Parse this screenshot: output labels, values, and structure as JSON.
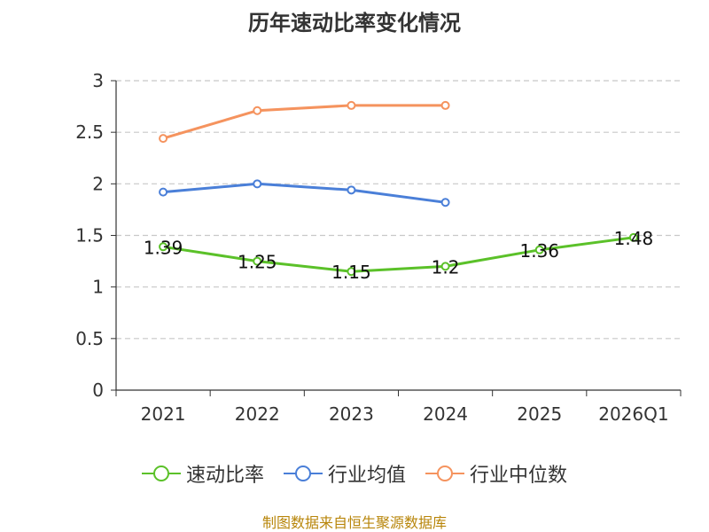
{
  "chart_data": {
    "type": "line",
    "title": "历年速动比率变化情况",
    "categories": [
      "2021",
      "2022",
      "2023",
      "2024",
      "2025",
      "2026Q1"
    ],
    "yticks": [
      "0",
      "0.5",
      "1",
      "1.5",
      "2",
      "2.5",
      "3"
    ],
    "ylim": [
      0,
      3
    ],
    "xlabel": "",
    "ylabel": "",
    "grid": true,
    "legend_position": "bottom",
    "series": [
      {
        "name": "速动比率",
        "color": "#5bc129",
        "values": [
          1.39,
          1.25,
          1.15,
          1.2,
          1.36,
          1.48
        ],
        "labels": [
          "1.39",
          "1.25",
          "1.15",
          "1.2",
          "1.36",
          "1.48"
        ]
      },
      {
        "name": "行业均值",
        "color": "#4a7fd8",
        "values": [
          1.92,
          2.0,
          1.94,
          1.82,
          null,
          null
        ]
      },
      {
        "name": "行业中位数",
        "color": "#f5935e",
        "values": [
          2.44,
          2.71,
          2.76,
          2.76,
          null,
          null
        ]
      }
    ]
  },
  "source": "制图数据来自恒生聚源数据库"
}
